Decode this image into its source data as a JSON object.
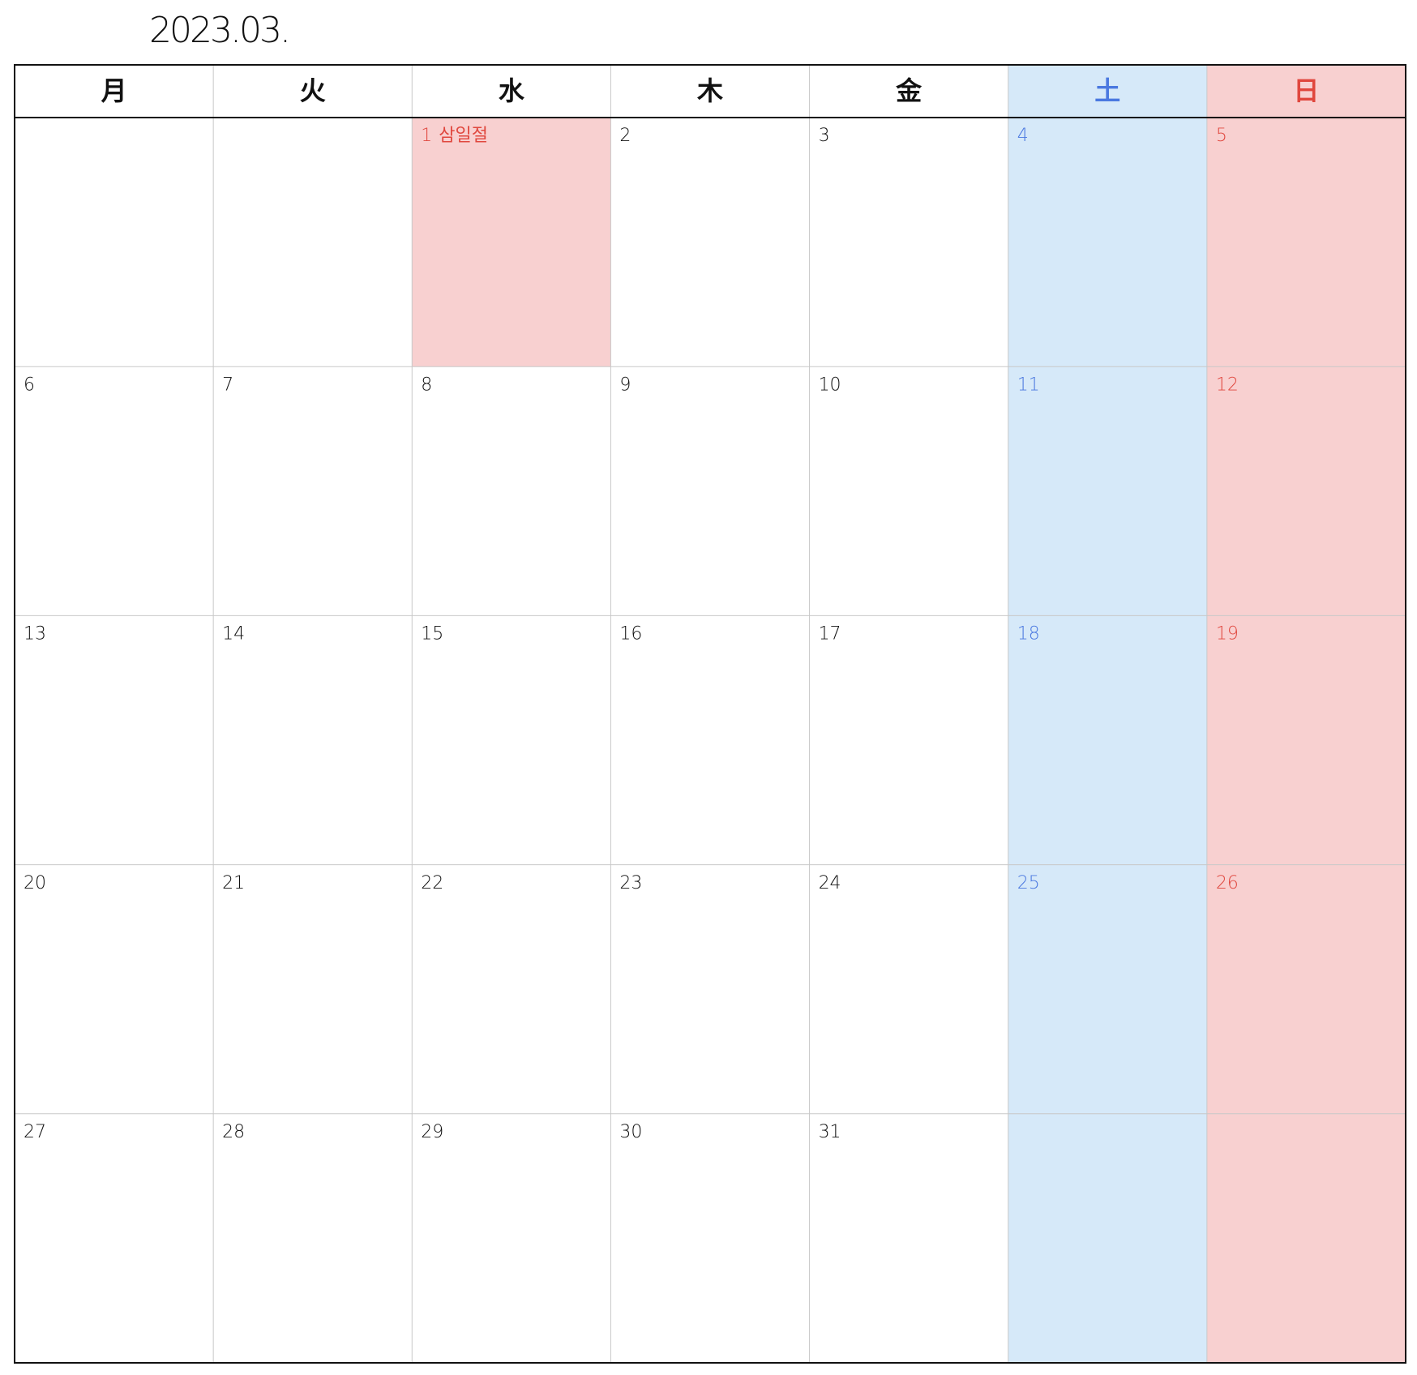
{
  "header": {
    "title": "2023.03."
  },
  "calendar": {
    "weekdays": [
      "月",
      "火",
      "水",
      "木",
      "金",
      "土",
      "日"
    ],
    "weeks": [
      [
        null,
        null,
        {
          "day": 1,
          "holiday": "삼일절"
        },
        {
          "day": 2
        },
        {
          "day": 3
        },
        {
          "day": 4
        },
        {
          "day": 5
        }
      ],
      [
        {
          "day": 6
        },
        {
          "day": 7
        },
        {
          "day": 8
        },
        {
          "day": 9
        },
        {
          "day": 10
        },
        {
          "day": 11
        },
        {
          "day": 12
        }
      ],
      [
        {
          "day": 13
        },
        {
          "day": 14
        },
        {
          "day": 15
        },
        {
          "day": 16
        },
        {
          "day": 17
        },
        {
          "day": 18
        },
        {
          "day": 19
        }
      ],
      [
        {
          "day": 20
        },
        {
          "day": 21
        },
        {
          "day": 22
        },
        {
          "day": 23
        },
        {
          "day": 24
        },
        {
          "day": 25
        },
        {
          "day": 26
        }
      ],
      [
        {
          "day": 27
        },
        {
          "day": 28
        },
        {
          "day": 29
        },
        {
          "day": 30
        },
        {
          "day": 31
        },
        null,
        null
      ]
    ]
  }
}
